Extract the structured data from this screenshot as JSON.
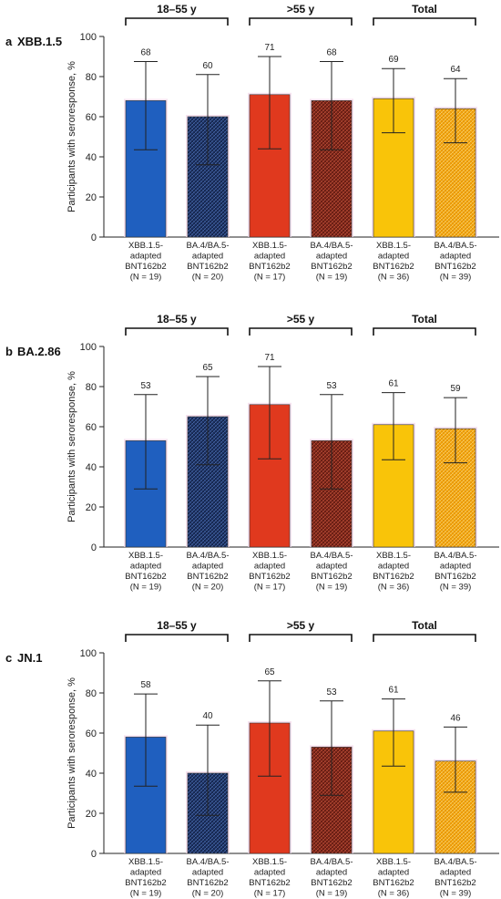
{
  "colors": {
    "xbb_18_55": "#1f5fbf",
    "ba45_18_55": "#1b2f5e",
    "xbb_over55": "#e0391e",
    "ba45_over55": "#7a2418",
    "xbb_total": "#f9c409",
    "ba45_total": "#f2a40a",
    "bar_shadow": "#f3d7ea"
  },
  "chart_data": [
    {
      "type": "bar",
      "panel_label": "a",
      "title": "XBB.1.5",
      "ylabel": "Participants with seroresponse, %",
      "ylim": [
        0,
        100
      ],
      "yticks": [
        0,
        20,
        40,
        60,
        80,
        100
      ],
      "groups": [
        "18–55 y",
        ">55 y",
        "Total"
      ],
      "categories": [
        [
          "XBB.1.5-",
          "adapted",
          "BNT162b2",
          "(N = 19)"
        ],
        [
          "BA.4/BA.5-",
          "adapted",
          "BNT162b2",
          "(N = 20)"
        ],
        [
          "XBB.1.5-",
          "adapted",
          "BNT162b2",
          "(N = 17)"
        ],
        [
          "BA.4/BA.5-",
          "adapted",
          "BNT162b2",
          "(N = 19)"
        ],
        [
          "XBB.1.5-",
          "adapted",
          "BNT162b2",
          "(N = 36)"
        ],
        [
          "BA.4/BA.5-",
          "adapted",
          "BNT162b2",
          "(N = 39)"
        ]
      ],
      "values": [
        68,
        60,
        71,
        68,
        69,
        64
      ],
      "value_labels": [
        "68",
        "60",
        "71",
        "68",
        "69",
        "64"
      ],
      "ci_low": [
        43.5,
        36,
        44,
        43.5,
        52,
        47
      ],
      "ci_high": [
        87.5,
        81,
        90,
        87.5,
        84,
        79
      ]
    },
    {
      "type": "bar",
      "panel_label": "b",
      "title": "BA.2.86",
      "ylabel": "Participants with seroresponse, %",
      "ylim": [
        0,
        100
      ],
      "yticks": [
        0,
        20,
        40,
        60,
        80,
        100
      ],
      "groups": [
        "18–55 y",
        ">55 y",
        "Total"
      ],
      "categories": [
        [
          "XBB.1.5-",
          "adapted",
          "BNT162b2",
          "(N = 19)"
        ],
        [
          "BA.4/BA.5-",
          "adapted",
          "BNT162b2",
          "(N = 20)"
        ],
        [
          "XBB.1.5-",
          "adapted",
          "BNT162b2",
          "(N = 17)"
        ],
        [
          "BA.4/BA.5-",
          "adapted",
          "BNT162b2",
          "(N = 19)"
        ],
        [
          "XBB.1.5-",
          "adapted",
          "BNT162b2",
          "(N = 36)"
        ],
        [
          "BA.4/BA.5-",
          "adapted",
          "BNT162b2",
          "(N = 39)"
        ]
      ],
      "values": [
        53,
        65,
        71,
        53,
        61,
        59
      ],
      "value_labels": [
        "53",
        "65",
        "71",
        "53",
        "61",
        "59"
      ],
      "ci_low": [
        29,
        41,
        44,
        29,
        43.5,
        42
      ],
      "ci_high": [
        76,
        85,
        90,
        76,
        77,
        74.5
      ]
    },
    {
      "type": "bar",
      "panel_label": "c",
      "title": "JN.1",
      "ylabel": "Participants with seroresponse, %",
      "ylim": [
        0,
        100
      ],
      "yticks": [
        0,
        20,
        40,
        60,
        80,
        100
      ],
      "groups": [
        "18–55 y",
        ">55 y",
        "Total"
      ],
      "categories": [
        [
          "XBB.1.5-",
          "adapted",
          "BNT162b2",
          "(N = 19)"
        ],
        [
          "BA.4/BA.5-",
          "adapted",
          "BNT162b2",
          "(N = 20)"
        ],
        [
          "XBB.1.5-",
          "adapted",
          "BNT162b2",
          "(N = 17)"
        ],
        [
          "BA.4/BA.5-",
          "adapted",
          "BNT162b2",
          "(N = 19)"
        ],
        [
          "XBB.1.5-",
          "adapted",
          "BNT162b2",
          "(N = 36)"
        ],
        [
          "BA.4/BA.5-",
          "adapted",
          "BNT162b2",
          "(N = 39)"
        ]
      ],
      "values": [
        58,
        40,
        65,
        53,
        61,
        46
      ],
      "value_labels": [
        "58",
        "40",
        "65",
        "53",
        "61",
        "46"
      ],
      "ci_low": [
        33.5,
        19,
        38.5,
        29,
        43.5,
        30.5
      ],
      "ci_high": [
        79.5,
        64,
        86,
        76,
        77,
        63
      ]
    }
  ]
}
